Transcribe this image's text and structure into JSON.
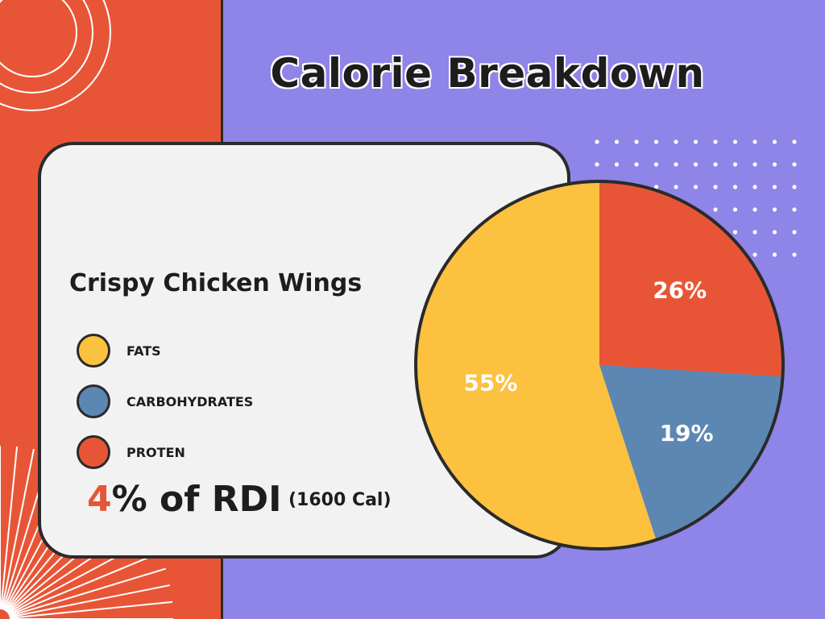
{
  "title": "Calorie Breakdown",
  "food_name": "Crispy Chicken Wings",
  "rdi": {
    "percent": "4",
    "suffix": "% of RDI",
    "calories": "(1600 Cal)"
  },
  "colors": {
    "background": "#8f84e8",
    "accent": "#e85536",
    "card": "#f2f2f2",
    "fats": "#fdc140",
    "carbohydrates": "#5c87b2",
    "protein": "#e85536"
  },
  "chart_data": {
    "type": "pie",
    "categories": [
      "FATS",
      "CARBOHYDRATES",
      "PROTEN"
    ],
    "values": [
      55,
      19,
      26
    ],
    "labels": [
      "55%",
      "19%",
      "26%"
    ],
    "colors": [
      "#fdc140",
      "#5c87b2",
      "#e85536"
    ],
    "legend_position": "left"
  }
}
